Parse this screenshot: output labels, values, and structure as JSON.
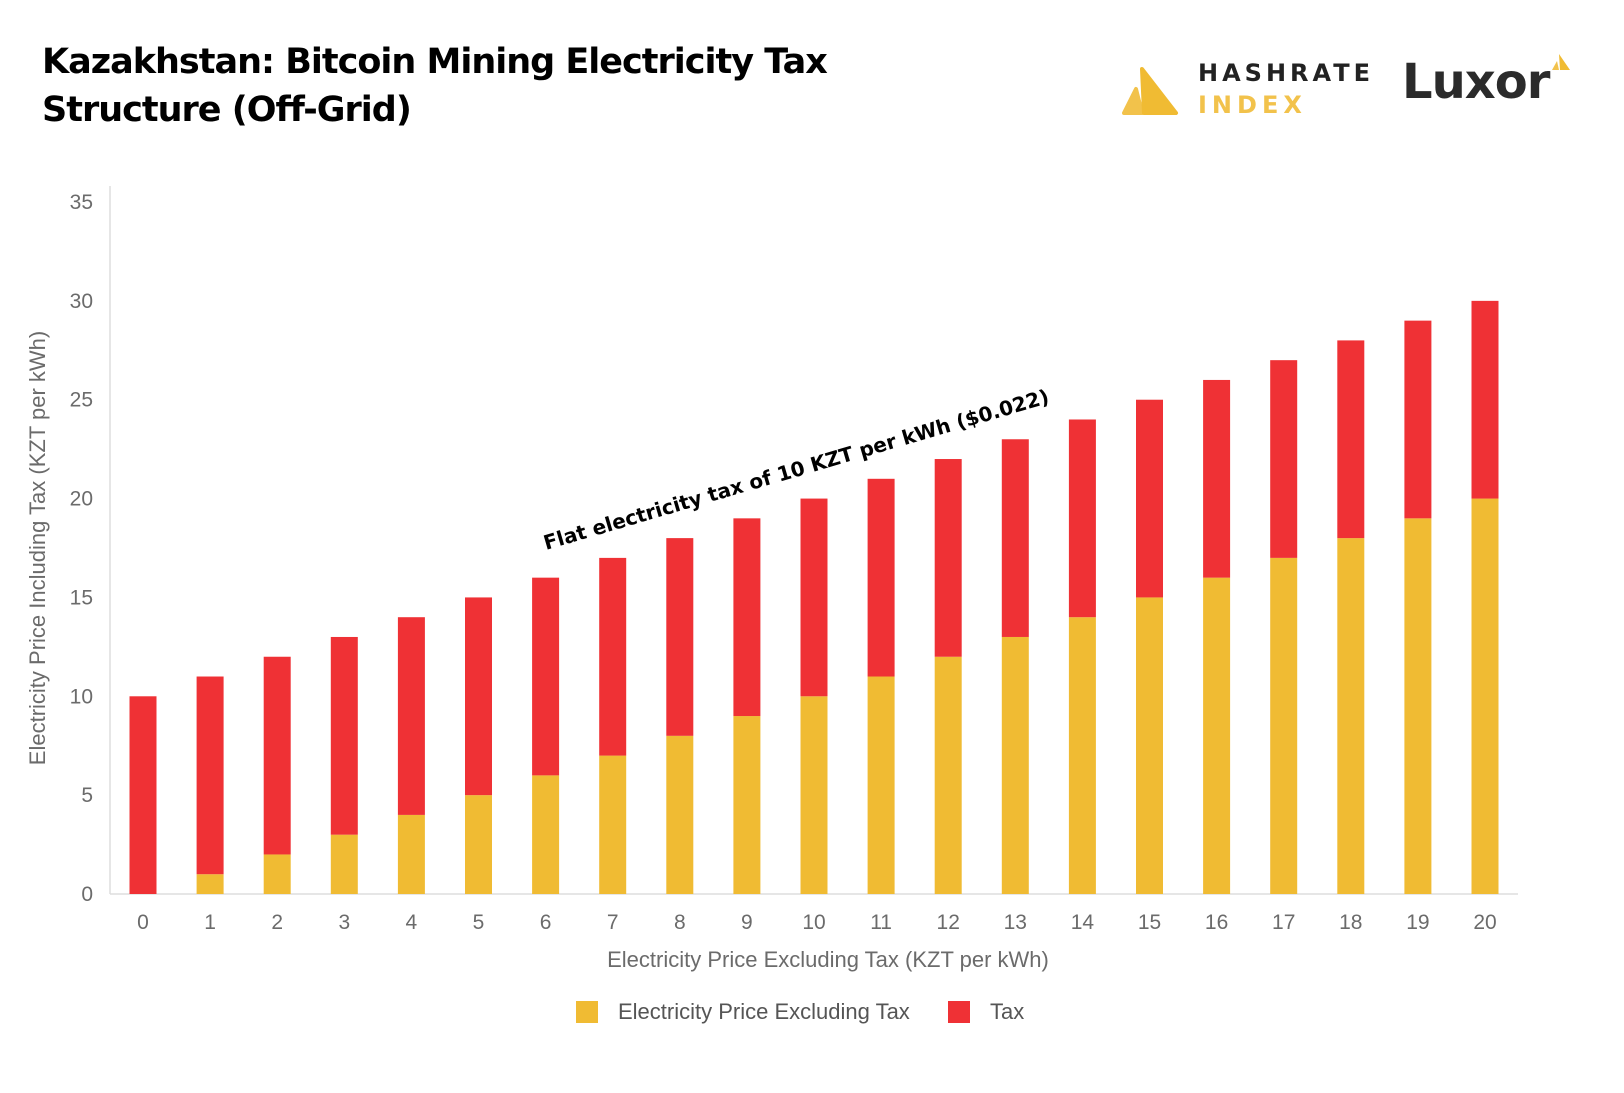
{
  "header": {
    "title_line1": "Kazakhstan: Bitcoin Mining Electricity Tax",
    "title_line2": "Structure (Off-Grid)",
    "logos": [
      {
        "name": "hashrate-index",
        "line1": "HASHRATE",
        "line2": "INDEX",
        "icon": "hashrate-index-triangle-icon"
      },
      {
        "name": "luxor",
        "text": "Luxor",
        "icon": "luxor-triangle-icon"
      }
    ]
  },
  "colors": {
    "price_ex_tax": "#f0bb33",
    "tax": "#ef3135",
    "axis": "#dddddd",
    "logo_gold": "#f2c24b",
    "logo_dark": "#2b2b2b"
  },
  "chart_data": {
    "type": "bar",
    "stacked": true,
    "title": "Kazakhstan: Bitcoin Mining Electricity Tax Structure (Off-Grid)",
    "xlabel": "Electricity Price Excluding Tax (KZT per kWh)",
    "ylabel": "Electricity Price Including Tax (KZT per kWh)",
    "ylim": [
      0,
      35
    ],
    "yticks": [
      0,
      5,
      10,
      15,
      20,
      25,
      30,
      35
    ],
    "grid": false,
    "legend_position": "bottom",
    "categories": [
      "0",
      "1",
      "2",
      "3",
      "4",
      "5",
      "6",
      "7",
      "8",
      "9",
      "10",
      "11",
      "12",
      "13",
      "14",
      "15",
      "16",
      "17",
      "18",
      "19",
      "20"
    ],
    "series": [
      {
        "name": "Electricity Price Excluding Tax",
        "color": "#f0bb33",
        "values": [
          0,
          1,
          2,
          3,
          4,
          5,
          6,
          7,
          8,
          9,
          10,
          11,
          12,
          13,
          14,
          15,
          16,
          17,
          18,
          19,
          20
        ]
      },
      {
        "name": "Tax",
        "color": "#ef3135",
        "values": [
          10,
          10,
          10,
          10,
          10,
          10,
          10,
          10,
          10,
          10,
          10,
          10,
          10,
          10,
          10,
          10,
          10,
          10,
          10,
          10,
          10
        ]
      }
    ],
    "annotations": [
      {
        "text": "Flat electricity tax of 10 KZT per kWh ($0.022)",
        "anchor_category": "6-13",
        "orientation": "rotated along bar tops"
      }
    ]
  }
}
